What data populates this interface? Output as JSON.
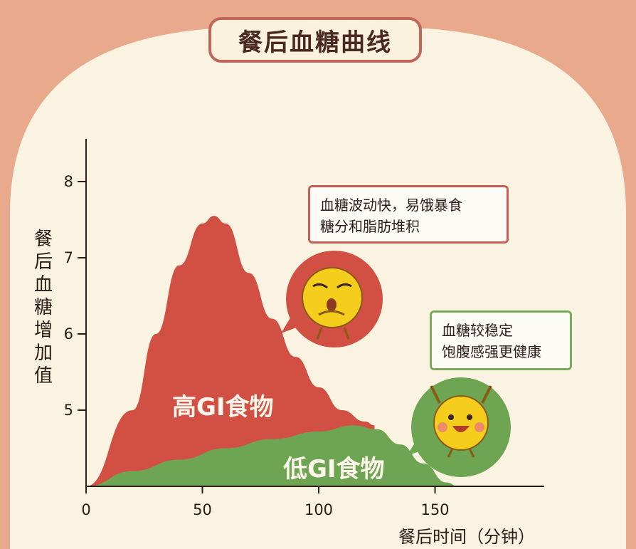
{
  "title": "餐后血糖曲线",
  "callouts": {
    "high": [
      "血糖波动快，易饿暴食",
      "糖分和脂肪堆积"
    ],
    "low": [
      "血糖较稳定",
      "饱腹感强更健康"
    ]
  },
  "colors": {
    "background_outer": "#e9a98c",
    "background_inner": "#fbf3e2",
    "high_gi": "#d14f43",
    "low_gi": "#6ea552",
    "title_border": "#c0665a",
    "green_border": "#7aab5c"
  },
  "chart_data": {
    "type": "area",
    "xlabel": "餐后时间（分钟）",
    "ylabel": "餐后血糖增加值",
    "x_ticks": [
      "0",
      "50",
      "100",
      "150"
    ],
    "y_ticks": [
      "5",
      "6",
      "7",
      "8"
    ],
    "xlim": [
      0,
      190
    ],
    "ylim": [
      4,
      8.5
    ],
    "series": [
      {
        "name": "高GI食物",
        "color": "#d14f43",
        "x": [
          0,
          20,
          30,
          40,
          50,
          55,
          60,
          70,
          80,
          90,
          100,
          110,
          120,
          124
        ],
        "y": [
          4.0,
          5.0,
          6.0,
          6.9,
          7.45,
          7.55,
          7.45,
          6.8,
          6.2,
          5.7,
          5.3,
          5.0,
          4.85,
          4.8
        ]
      },
      {
        "name": "低GI食物",
        "color": "#6ea552",
        "x": [
          0,
          20,
          40,
          60,
          80,
          100,
          115,
          125,
          135,
          145,
          155,
          160
        ],
        "y": [
          4.0,
          4.2,
          4.35,
          4.5,
          4.62,
          4.72,
          4.8,
          4.75,
          4.55,
          4.3,
          4.05,
          4.0
        ]
      }
    ]
  }
}
